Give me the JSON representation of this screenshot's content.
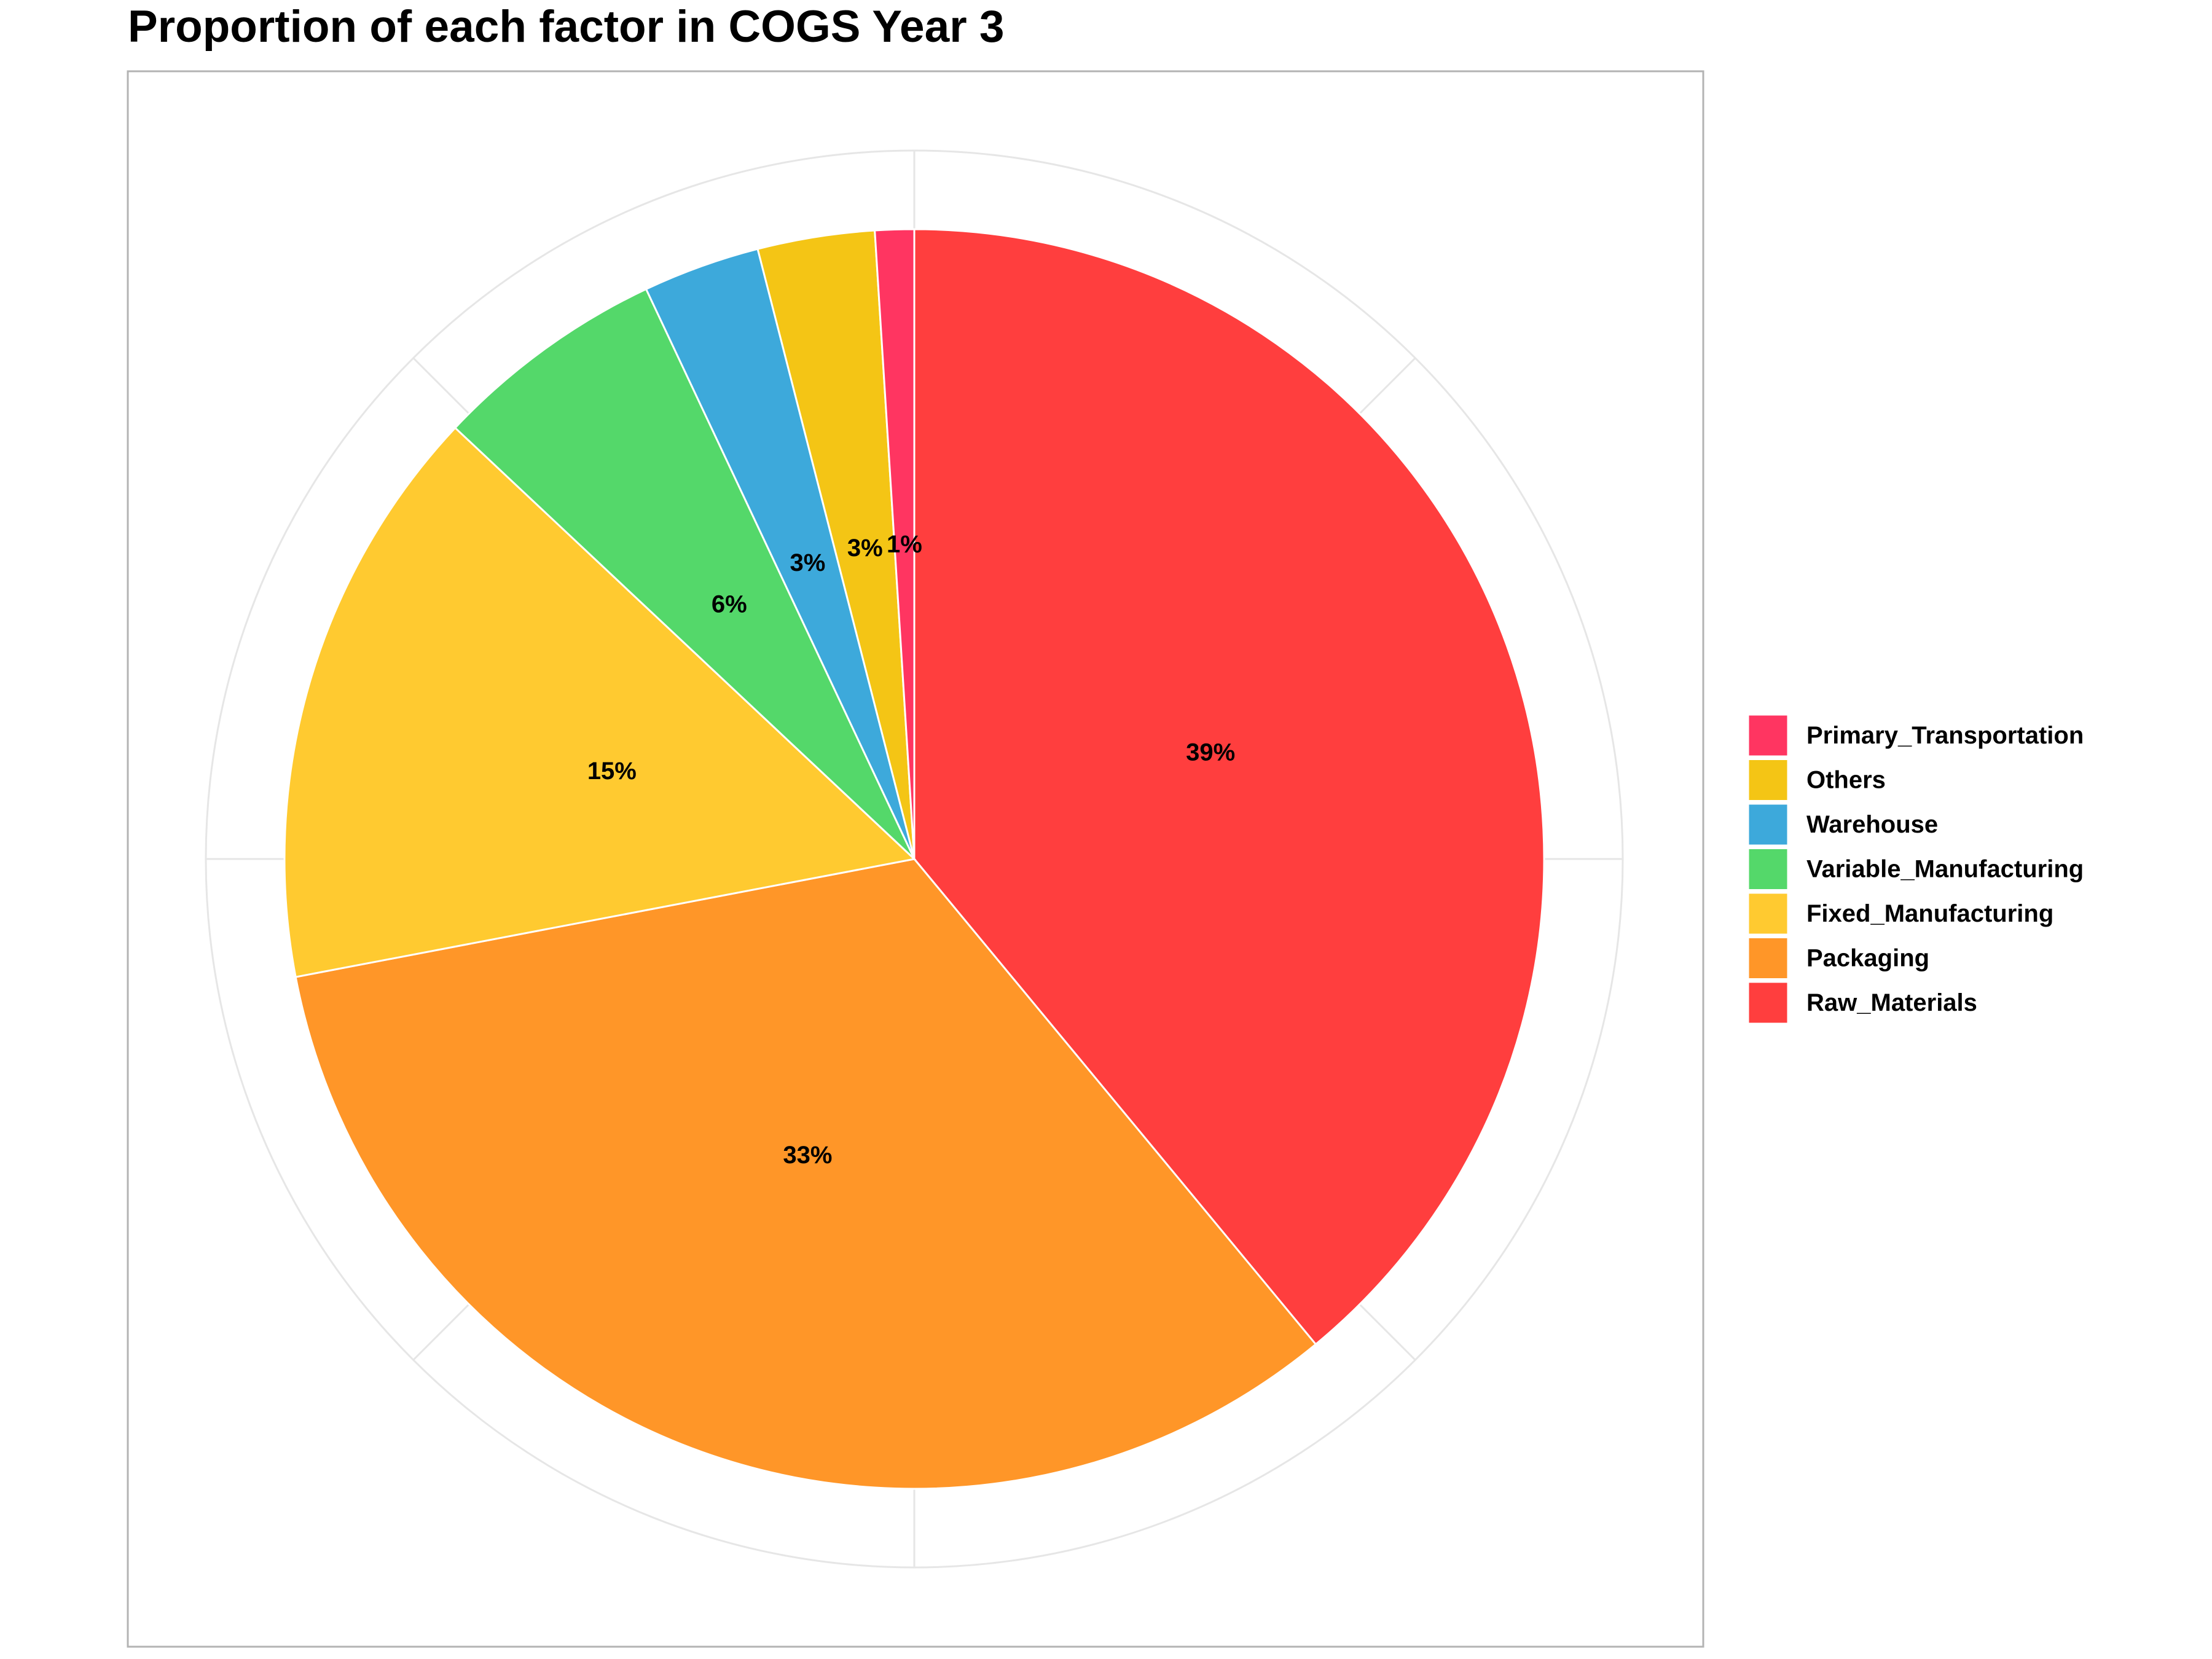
{
  "chart_data": {
    "type": "pie",
    "title": "Proportion of each factor in COGS Year 3",
    "categories": [
      "Raw_Materials",
      "Packaging",
      "Fixed_Manufacturing",
      "Variable_Manufacturing",
      "Warehouse",
      "Others",
      "Primary_Transportation"
    ],
    "values": [
      39,
      33,
      15,
      6,
      3,
      3,
      1
    ],
    "labels": [
      "39%",
      "33%",
      "15%",
      "6%",
      "3%",
      "3%",
      "1%"
    ],
    "colors": [
      "#FF3E3E",
      "#FF9628",
      "#FFCA30",
      "#54D86A",
      "#3DA9DB",
      "#F4C515",
      "#FF3561"
    ],
    "legend": {
      "position": "right",
      "items": [
        "Primary_Transportation",
        "Others",
        "Warehouse",
        "Variable_Manufacturing",
        "Fixed_Manufacturing",
        "Packaging",
        "Raw_Materials"
      ]
    },
    "start_angle": "12 o'clock",
    "direction": "clockwise",
    "grid": true
  }
}
